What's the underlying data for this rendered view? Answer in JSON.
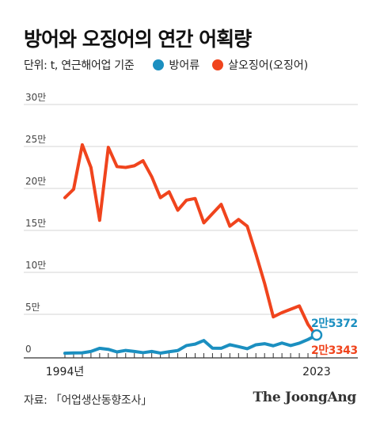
{
  "title": "방어와 오징어의 연간 어획량",
  "unit_label": "단위: t, 연근해어업 기준",
  "source": "자료: 「어업생산동향조사」",
  "logo": "The JoongAng",
  "chart_data": {
    "type": "line",
    "title": "방어와 오징어의 연간 어획량",
    "x": [
      1994,
      1995,
      1996,
      1997,
      1998,
      1999,
      2000,
      2001,
      2002,
      2003,
      2004,
      2005,
      2006,
      2007,
      2008,
      2009,
      2010,
      2011,
      2012,
      2013,
      2014,
      2015,
      2016,
      2017,
      2018,
      2019,
      2020,
      2021,
      2022,
      2023
    ],
    "x_tick_labels": [
      "1994년",
      "2023"
    ],
    "y_ticks": [
      0,
      50000,
      100000,
      150000,
      200000,
      250000,
      300000
    ],
    "y_tick_labels": [
      "0",
      "5만",
      "10만",
      "15만",
      "20만",
      "25만",
      "30만"
    ],
    "ylim": [
      0,
      300000
    ],
    "grid": true,
    "legend_position": "top",
    "series": [
      {
        "name": "방어류",
        "color": "#1b8fc0",
        "values": [
          3600,
          4000,
          4100,
          5800,
          9500,
          8300,
          5200,
          7000,
          5800,
          4300,
          5800,
          3800,
          5400,
          6800,
          12800,
          14500,
          18800,
          9700,
          9500,
          13800,
          11500,
          9000,
          13700,
          15000,
          12500,
          15800,
          12800,
          15600,
          20000,
          25372
        ],
        "end_label": "2만5372"
      },
      {
        "name": "살오징어(오징어)",
        "color": "#f0441d",
        "values": [
          189000,
          199000,
          252000,
          225000,
          162000,
          249000,
          226000,
          225000,
          227000,
          233000,
          214000,
          189000,
          196000,
          174000,
          186000,
          188000,
          159000,
          170000,
          181000,
          155000,
          163000,
          155000,
          122000,
          87000,
          47000,
          52000,
          56000,
          60000,
          38000,
          23343
        ],
        "end_label": "2만3343"
      }
    ]
  }
}
